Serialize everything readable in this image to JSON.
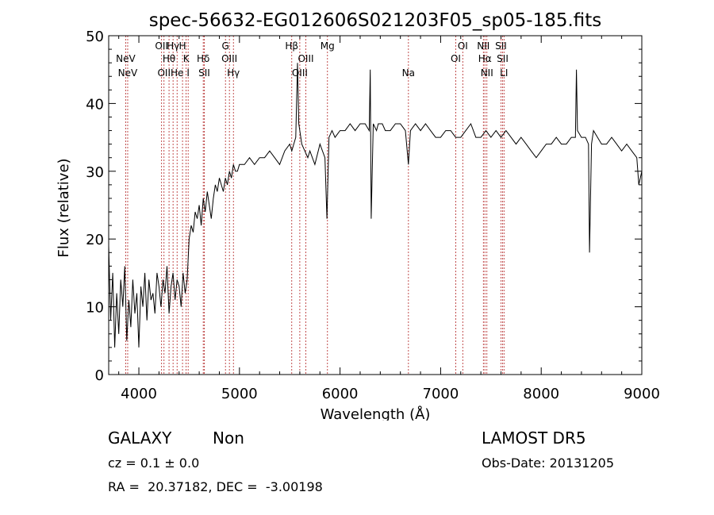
{
  "chart_data": {
    "type": "line",
    "title": "spec-56632-EG012606S021203F05_sp05-185.fits",
    "xlabel": "Wavelength (Å)",
    "ylabel": "Flux (relative)",
    "xlim": [
      3700,
      9000
    ],
    "ylim": [
      0,
      50
    ],
    "xticks": [
      4000,
      5000,
      6000,
      7000,
      8000,
      9000
    ],
    "yticks": [
      0,
      10,
      20,
      30,
      40,
      50
    ],
    "line_color": "#000000",
    "marker_color": "#b22222",
    "grid": false,
    "series": [
      {
        "x": [
          3700,
          3720,
          3740,
          3760,
          3780,
          3800,
          3820,
          3840,
          3860,
          3880,
          3900,
          3920,
          3940,
          3960,
          3980,
          4000,
          4020,
          4040,
          4060,
          4080,
          4100,
          4120,
          4140,
          4160,
          4180,
          4200,
          4220,
          4240,
          4260,
          4280,
          4300,
          4320,
          4340,
          4360,
          4380,
          4400,
          4420,
          4440,
          4460,
          4480,
          4500,
          4520,
          4540,
          4560,
          4580,
          4600,
          4620,
          4640,
          4660,
          4680,
          4700,
          4720,
          4740,
          4760,
          4780,
          4800,
          4820,
          4840,
          4860,
          4880,
          4900,
          4920,
          4940,
          4960,
          4980,
          5000,
          5050,
          5100,
          5150,
          5200,
          5250,
          5300,
          5350,
          5400,
          5450,
          5500,
          5520,
          5540,
          5560,
          5577,
          5590,
          5600,
          5620,
          5650,
          5680,
          5700,
          5750,
          5800,
          5850,
          5870,
          5890,
          5920,
          5950,
          6000,
          6050,
          6100,
          6150,
          6200,
          6250,
          6290,
          6300,
          6310,
          6330,
          6363,
          6380,
          6420,
          6450,
          6500,
          6550,
          6600,
          6650,
          6680,
          6700,
          6750,
          6800,
          6850,
          6900,
          6950,
          7000,
          7050,
          7100,
          7150,
          7200,
          7250,
          7300,
          7350,
          7400,
          7450,
          7500,
          7550,
          7600,
          7650,
          7700,
          7750,
          7800,
          7850,
          7900,
          7950,
          8000,
          8050,
          8100,
          8150,
          8200,
          8250,
          8300,
          8340,
          8350,
          8360,
          8400,
          8440,
          8470,
          8480,
          8500,
          8520,
          8560,
          8600,
          8650,
          8700,
          8750,
          8800,
          8850,
          8900,
          8950,
          8970,
          9000
        ],
        "y": [
          19,
          8,
          15,
          4,
          12,
          6,
          14,
          10,
          16,
          5,
          11,
          7,
          14,
          9,
          12,
          4,
          13,
          10,
          15,
          8,
          14,
          11,
          12,
          9,
          15,
          13,
          10,
          14,
          12,
          16,
          9,
          13,
          15,
          11,
          14,
          13,
          10,
          15,
          12,
          14,
          20,
          22,
          21,
          24,
          23,
          25,
          22,
          26,
          24,
          27,
          25,
          23,
          26,
          28,
          27,
          29,
          28,
          27,
          29,
          28,
          30,
          29,
          31,
          30,
          30,
          31,
          31,
          32,
          31,
          32,
          32,
          33,
          32,
          31,
          33,
          34,
          33,
          34,
          35,
          46,
          37,
          36,
          34,
          33,
          32,
          33,
          31,
          34,
          32,
          23,
          35,
          36,
          35,
          36,
          36,
          37,
          36,
          37,
          37,
          36,
          45,
          23,
          37,
          36,
          37,
          37,
          36,
          36,
          37,
          37,
          36,
          31,
          36,
          37,
          36,
          37,
          36,
          35,
          35,
          36,
          36,
          35,
          35,
          36,
          37,
          35,
          35,
          36,
          35,
          36,
          35,
          36,
          35,
          34,
          35,
          34,
          33,
          32,
          33,
          34,
          34,
          35,
          34,
          34,
          35,
          35,
          45,
          36,
          35,
          35,
          34,
          18,
          34,
          36,
          35,
          34,
          34,
          35,
          34,
          33,
          34,
          33,
          32,
          28,
          30
        ]
      }
    ],
    "line_markers": [
      {
        "x": 3869,
        "label": "NeV",
        "row": 2
      },
      {
        "x": 3889,
        "label": "NeV",
        "row": 3
      },
      {
        "x": 4226,
        "label": "OII",
        "row": 1
      },
      {
        "x": 4250,
        "label": "OII",
        "row": 3
      },
      {
        "x": 4300,
        "label": "Hθ",
        "row": 2
      },
      {
        "x": 4340,
        "label": "Hγ",
        "row": 1
      },
      {
        "x": 4380,
        "label": "He",
        "row": 3
      },
      {
        "x": 4434,
        "label": "H",
        "row": 1
      },
      {
        "x": 4470,
        "label": "K",
        "row": 2
      },
      {
        "x": 4490,
        "label": "I",
        "row": 3
      },
      {
        "x": 4640,
        "label": "Hδ",
        "row": 2
      },
      {
        "x": 4650,
        "label": "SII",
        "row": 3
      },
      {
        "x": 4861,
        "label": "G",
        "row": 1
      },
      {
        "x": 4900,
        "label": "OIII",
        "row": 2
      },
      {
        "x": 4940,
        "label": "Hγ",
        "row": 3
      },
      {
        "x": 5520,
        "label": "Hβ",
        "row": 1
      },
      {
        "x": 5600,
        "label": "OIII",
        "row": 3
      },
      {
        "x": 5660,
        "label": "OIII",
        "row": 2
      },
      {
        "x": 5875,
        "label": "Mg",
        "row": 1
      },
      {
        "x": 6680,
        "label": "Na",
        "row": 3
      },
      {
        "x": 7150,
        "label": "OI",
        "row": 2
      },
      {
        "x": 7220,
        "label": "OI",
        "row": 1
      },
      {
        "x": 7425,
        "label": "NII",
        "row": 1
      },
      {
        "x": 7440,
        "label": "Hα",
        "row": 2
      },
      {
        "x": 7460,
        "label": "NII",
        "row": 3
      },
      {
        "x": 7600,
        "label": "SII",
        "row": 1
      },
      {
        "x": 7616,
        "label": "SII",
        "row": 2
      },
      {
        "x": 7630,
        "label": "LI",
        "row": 3
      }
    ]
  },
  "info": {
    "object_class": "GALAXY",
    "subclass": "Non",
    "redshift": "cz = 0.1 ± 0.0",
    "coords": "RA =  20.37182, DEC =  -3.00198",
    "survey": "LAMOST DR5",
    "obs_date": "Obs-Date: 20131205"
  }
}
